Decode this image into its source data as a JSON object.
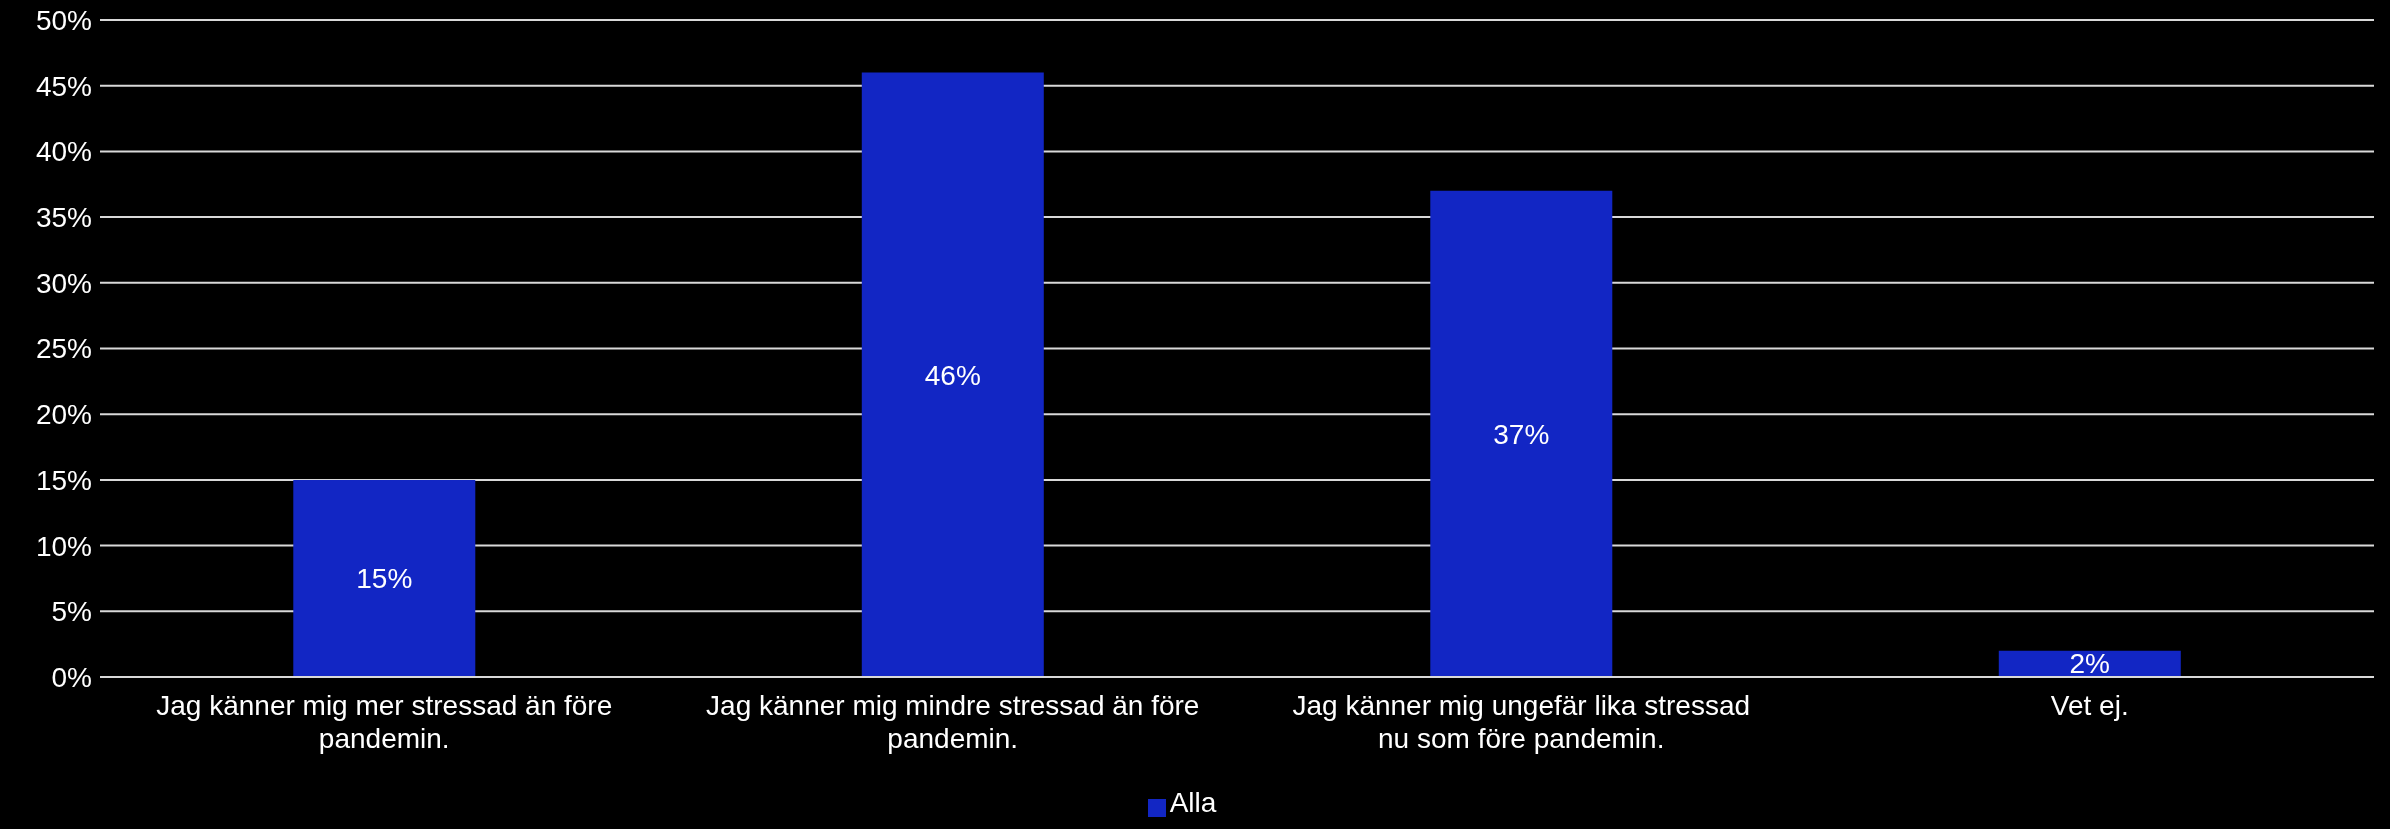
{
  "chart_data": {
    "type": "bar",
    "categories": [
      "Jag känner mig mer stressad än före pandemin.",
      "Jag känner mig mindre stressad än före pandemin.",
      "Jag känner mig ungefär lika stressad nu som före pandemin.",
      "Vet ej."
    ],
    "series": [
      {
        "name": "Alla",
        "color": "#1226c4",
        "values": [
          15,
          46,
          37,
          2
        ],
        "value_labels": [
          "15%",
          "46%",
          "37%",
          "2%"
        ]
      }
    ],
    "ylim": [
      0,
      50
    ],
    "yticks": [
      {
        "value": 0,
        "label": "0%"
      },
      {
        "value": 5,
        "label": "5%"
      },
      {
        "value": 10,
        "label": "10%"
      },
      {
        "value": 15,
        "label": "15%"
      },
      {
        "value": 20,
        "label": "20%"
      },
      {
        "value": 25,
        "label": "25%"
      },
      {
        "value": 30,
        "label": "30%"
      },
      {
        "value": 35,
        "label": "35%"
      },
      {
        "value": 40,
        "label": "40%"
      },
      {
        "value": 45,
        "label": "45%"
      },
      {
        "value": 50,
        "label": "50%"
      }
    ],
    "grid": "y",
    "legend": "bottom"
  }
}
